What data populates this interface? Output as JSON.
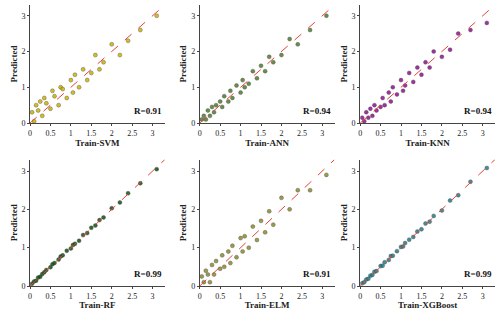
{
  "chart_data": [
    {
      "type": "scatter",
      "x_label": "Train-SVM",
      "y_label": "Predicted",
      "annotation": "R=0.91",
      "color": "#c9b300",
      "marker": "circle",
      "xlim": [
        0,
        3.3
      ],
      "ylim": [
        0,
        3.3
      ],
      "xticks": [
        0,
        0.5,
        1,
        1.5,
        2,
        2.5,
        3
      ],
      "yticks": [
        0,
        1,
        2,
        3
      ],
      "grid": false,
      "x": [
        0.05,
        0.1,
        0.15,
        0.2,
        0.25,
        0.3,
        0.35,
        0.4,
        0.5,
        0.55,
        0.6,
        0.7,
        0.75,
        0.8,
        0.9,
        1.0,
        1.05,
        1.1,
        1.2,
        1.3,
        1.4,
        1.5,
        1.6,
        1.7,
        1.8,
        2.0,
        2.2,
        2.4,
        2.7,
        3.1
      ],
      "values": [
        0.3,
        0.05,
        0.5,
        0.35,
        0.6,
        0.2,
        0.7,
        0.55,
        0.4,
        0.9,
        0.75,
        0.5,
        1.0,
        0.95,
        0.7,
        1.2,
        0.85,
        1.35,
        1.0,
        1.5,
        1.2,
        1.4,
        1.9,
        1.5,
        1.7,
        2.2,
        1.9,
        2.3,
        2.6,
        3.0
      ]
    },
    {
      "type": "scatter",
      "x_label": "Train-ANN",
      "y_label": "Predicted",
      "annotation": "R=0.94",
      "color": "#4f7a2b",
      "marker": "circle",
      "xlim": [
        0,
        3.3
      ],
      "ylim": [
        0,
        3.3
      ],
      "xticks": [
        0,
        0.5,
        1,
        1.5,
        2,
        2.5,
        3
      ],
      "yticks": [
        0,
        1,
        2,
        3
      ],
      "grid": false,
      "x": [
        0.05,
        0.1,
        0.15,
        0.2,
        0.25,
        0.3,
        0.35,
        0.4,
        0.5,
        0.55,
        0.6,
        0.7,
        0.75,
        0.8,
        0.9,
        1.0,
        1.05,
        1.1,
        1.2,
        1.3,
        1.4,
        1.5,
        1.6,
        1.7,
        1.8,
        2.0,
        2.2,
        2.4,
        2.7,
        3.1
      ],
      "values": [
        0.1,
        0.2,
        0.1,
        0.35,
        0.2,
        0.45,
        0.3,
        0.5,
        0.6,
        0.45,
        0.75,
        0.6,
        0.9,
        0.7,
        1.05,
        0.85,
        1.2,
        1.0,
        1.1,
        1.45,
        1.25,
        1.6,
        1.45,
        1.85,
        1.7,
        1.9,
        2.35,
        2.2,
        2.6,
        3.0
      ]
    },
    {
      "type": "scatter",
      "x_label": "Train-KNN",
      "y_label": "Predicted",
      "annotation": "R=0.94",
      "color": "#8e0f8e",
      "marker": "circle",
      "xlim": [
        0,
        3.3
      ],
      "ylim": [
        0,
        3.3
      ],
      "xticks": [
        0,
        0.5,
        1,
        1.5,
        2,
        2.5,
        3
      ],
      "yticks": [
        0,
        1,
        2,
        3
      ],
      "grid": false,
      "x": [
        0.05,
        0.1,
        0.15,
        0.2,
        0.25,
        0.3,
        0.35,
        0.4,
        0.5,
        0.55,
        0.6,
        0.7,
        0.75,
        0.8,
        0.9,
        1.0,
        1.05,
        1.1,
        1.2,
        1.3,
        1.4,
        1.5,
        1.6,
        1.7,
        1.8,
        2.0,
        2.2,
        2.4,
        2.7,
        3.1
      ],
      "values": [
        0.15,
        0.05,
        0.3,
        0.15,
        0.4,
        0.2,
        0.5,
        0.35,
        0.45,
        0.7,
        0.5,
        0.85,
        0.6,
        1.0,
        0.8,
        1.2,
        0.9,
        1.05,
        1.4,
        1.15,
        1.55,
        1.35,
        1.7,
        1.55,
        2.0,
        1.85,
        2.05,
        2.5,
        2.6,
        2.8
      ]
    },
    {
      "type": "scatter",
      "x_label": "Train-RF",
      "y_label": "Predicted",
      "annotation": "R=0.99",
      "color": "#0d4f12",
      "marker": "circle",
      "xlim": [
        0,
        3.3
      ],
      "ylim": [
        0,
        3.3
      ],
      "xticks": [
        0,
        0.5,
        1,
        1.5,
        2,
        2.5,
        3
      ],
      "yticks": [
        0,
        1,
        2,
        3
      ],
      "grid": false,
      "x": [
        0.05,
        0.1,
        0.15,
        0.2,
        0.25,
        0.3,
        0.35,
        0.4,
        0.5,
        0.55,
        0.6,
        0.7,
        0.75,
        0.8,
        0.9,
        1.0,
        1.05,
        1.1,
        1.2,
        1.3,
        1.4,
        1.5,
        1.6,
        1.7,
        1.8,
        2.0,
        2.2,
        2.4,
        2.7,
        3.1
      ],
      "values": [
        0.06,
        0.12,
        0.14,
        0.22,
        0.24,
        0.31,
        0.36,
        0.42,
        0.49,
        0.57,
        0.6,
        0.69,
        0.77,
        0.8,
        0.92,
        0.98,
        1.07,
        1.1,
        1.18,
        1.33,
        1.38,
        1.52,
        1.58,
        1.72,
        1.79,
        2.03,
        2.18,
        2.42,
        2.68,
        3.05
      ]
    },
    {
      "type": "scatter",
      "x_label": "Train-ELM",
      "y_label": "Predicted",
      "annotation": "R=0.91",
      "color": "#8c8a2c",
      "marker": "circle",
      "xlim": [
        0,
        3.3
      ],
      "ylim": [
        0,
        3.3
      ],
      "xticks": [
        0,
        0.5,
        1,
        1.5,
        2,
        2.5,
        3
      ],
      "yticks": [
        0,
        1,
        2,
        3
      ],
      "grid": false,
      "x": [
        0.05,
        0.1,
        0.15,
        0.2,
        0.25,
        0.3,
        0.35,
        0.4,
        0.5,
        0.55,
        0.6,
        0.7,
        0.75,
        0.8,
        0.9,
        1.0,
        1.05,
        1.1,
        1.2,
        1.3,
        1.4,
        1.5,
        1.6,
        1.7,
        1.8,
        2.0,
        2.2,
        2.4,
        2.7,
        3.1
      ],
      "values": [
        0.25,
        0.1,
        0.4,
        0.3,
        0.1,
        0.55,
        0.3,
        0.65,
        0.45,
        0.8,
        0.5,
        0.9,
        0.6,
        1.05,
        0.75,
        1.25,
        0.9,
        1.3,
        1.0,
        1.55,
        1.2,
        1.7,
        1.4,
        1.95,
        1.6,
        2.3,
        2.0,
        2.5,
        2.5,
        2.9
      ]
    },
    {
      "type": "scatter",
      "x_label": "Train-XGBoost",
      "y_label": "Predicted",
      "annotation": "R=0.99",
      "color": "#1f7d88",
      "marker": "circle",
      "xlim": [
        0,
        3.3
      ],
      "ylim": [
        0,
        3.3
      ],
      "xticks": [
        0,
        0.5,
        1,
        1.5,
        2,
        2.5,
        3
      ],
      "yticks": [
        0,
        1,
        2,
        3
      ],
      "grid": false,
      "x": [
        0.05,
        0.1,
        0.15,
        0.2,
        0.25,
        0.3,
        0.35,
        0.4,
        0.5,
        0.55,
        0.6,
        0.7,
        0.75,
        0.8,
        0.9,
        1.0,
        1.05,
        1.1,
        1.2,
        1.3,
        1.4,
        1.5,
        1.6,
        1.7,
        1.8,
        2.0,
        2.2,
        2.4,
        2.7,
        3.1
      ],
      "values": [
        0.07,
        0.1,
        0.17,
        0.19,
        0.27,
        0.29,
        0.37,
        0.39,
        0.52,
        0.53,
        0.62,
        0.68,
        0.78,
        0.79,
        0.91,
        1.02,
        1.03,
        1.12,
        1.21,
        1.28,
        1.42,
        1.48,
        1.63,
        1.68,
        1.83,
        1.97,
        2.23,
        2.37,
        2.72,
        3.08
      ]
    }
  ]
}
